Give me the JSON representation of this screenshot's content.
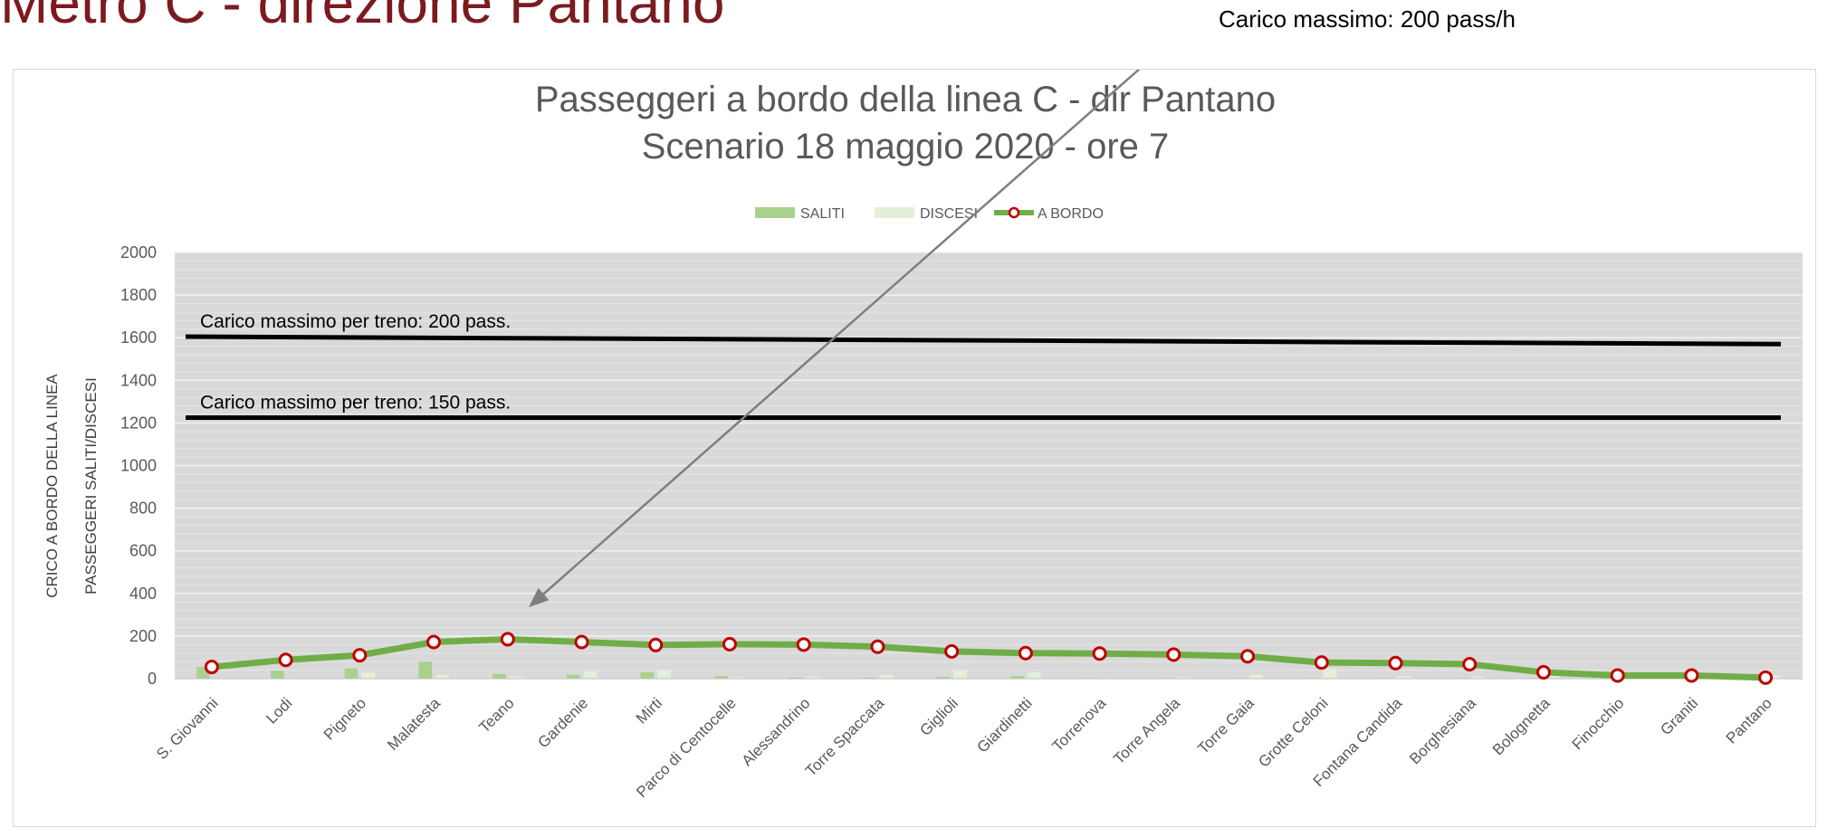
{
  "slide": {
    "title": "Metro C - direzione Pantano",
    "callout": "Carico massimo: 200 pass/h"
  },
  "chart_data": {
    "type": "bar",
    "title": "Passeggeri a bordo della linea C - dir Pantano",
    "subtitle": "Scenario 18 maggio 2020 - ore 7",
    "ylabel_outer": "CRICO A BORDO DELLA LINEA",
    "ylabel_inner": "PASSEGGERI SALITI/DISCESI",
    "xlabel": "",
    "ylim": [
      0,
      2000
    ],
    "yticks": [
      0,
      200,
      400,
      600,
      800,
      1000,
      1200,
      1400,
      1600,
      1800,
      2000
    ],
    "grid": true,
    "legend_position": "top-center",
    "categories": [
      "S. Giovanni",
      "Lodi",
      "Pigneto",
      "Malatesta",
      "Teano",
      "Gardenie",
      "Mirti",
      "Parco di Centocelle",
      "Alessandrino",
      "Torre Spaccata",
      "Giglioli",
      "Giardinetti",
      "Torrenova",
      "Torre Angela",
      "Torre Gaia",
      "Grotte Celoni",
      "Fontana Candida",
      "Borghesiana",
      "Bolognetta",
      "Finocchio",
      "Graniti",
      "Pantano"
    ],
    "series": [
      {
        "name": "SALITI",
        "kind": "bar",
        "color": "#a9d18e",
        "values": [
          55,
          38,
          48,
          80,
          22,
          18,
          30,
          12,
          5,
          5,
          8,
          12,
          3,
          3,
          3,
          3,
          3,
          3,
          3,
          3,
          3,
          0
        ]
      },
      {
        "name": "DISCESI",
        "kind": "bar",
        "color": "#e2efd9",
        "values": [
          0,
          5,
          28,
          18,
          10,
          35,
          40,
          8,
          10,
          18,
          38,
          30,
          5,
          8,
          18,
          48,
          12,
          10,
          35,
          15,
          10,
          15
        ]
      },
      {
        "name": "A BORDO",
        "kind": "line",
        "color": "#70ad47",
        "marker_color": "#c00000",
        "values": [
          55,
          88,
          110,
          172,
          185,
          172,
          158,
          162,
          160,
          150,
          128,
          120,
          118,
          113,
          105,
          76,
          73,
          68,
          30,
          15,
          15,
          5
        ]
      }
    ],
    "reference_lines": [
      {
        "label": "Carico massimo per treno: 200 pass.",
        "y_start": 1605,
        "y_end": 1570
      },
      {
        "label": "Carico massimo per treno: 150 pass.",
        "y_start": 1225,
        "y_end": 1225
      }
    ]
  }
}
